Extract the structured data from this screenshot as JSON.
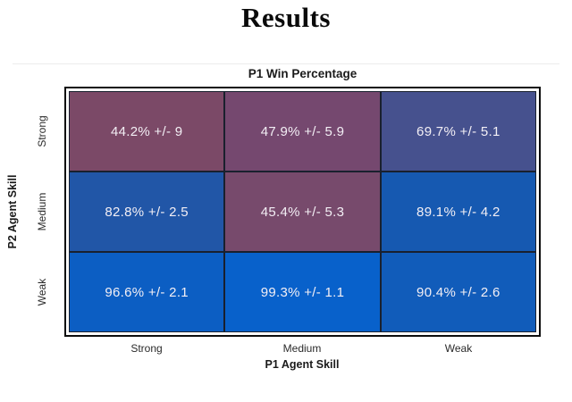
{
  "page": {
    "title": "Results"
  },
  "chart_data": {
    "type": "heatmap",
    "title": "P1 Win Percentage",
    "xlabel": "P1 Agent Skill",
    "ylabel": "P2 Agent Skill",
    "x_categories": [
      "Strong",
      "Medium",
      "Weak"
    ],
    "y_categories": [
      "Strong",
      "Medium",
      "Weak"
    ],
    "legend": "none",
    "value_unit": "percent P1 win rate with +/- error margin",
    "cells": [
      {
        "p2_skill": "Strong",
        "p1_skill": "Strong",
        "value": 44.2,
        "error": 9,
        "label": "44.2% +/- 9",
        "color": "#7b4967"
      },
      {
        "p2_skill": "Strong",
        "p1_skill": "Medium",
        "value": 47.9,
        "error": 5.9,
        "label": "47.9% +/- 5.9",
        "color": "#75486f"
      },
      {
        "p2_skill": "Strong",
        "p1_skill": "Weak",
        "value": 69.7,
        "error": 5.1,
        "label": "69.7% +/- 5.1",
        "color": "#46518e"
      },
      {
        "p2_skill": "Medium",
        "p1_skill": "Strong",
        "value": 82.8,
        "error": 2.5,
        "label": "82.8% +/- 2.5",
        "color": "#2156a7"
      },
      {
        "p2_skill": "Medium",
        "p1_skill": "Medium",
        "value": 45.4,
        "error": 5.3,
        "label": "45.4% +/- 5.3",
        "color": "#774a6c"
      },
      {
        "p2_skill": "Medium",
        "p1_skill": "Weak",
        "value": 89.1,
        "error": 4.2,
        "label": "89.1% +/- 4.2",
        "color": "#1659b1"
      },
      {
        "p2_skill": "Weak",
        "p1_skill": "Strong",
        "value": 96.6,
        "error": 2.1,
        "label": "96.6% +/- 2.1",
        "color": "#0c5ec3"
      },
      {
        "p2_skill": "Weak",
        "p1_skill": "Medium",
        "value": 99.3,
        "error": 1.1,
        "label": "99.3% +/- 1.1",
        "color": "#0861cb"
      },
      {
        "p2_skill": "Weak",
        "p1_skill": "Weak",
        "value": 90.4,
        "error": 2.6,
        "label": "90.4% +/- 2.6",
        "color": "#115cba"
      }
    ]
  }
}
